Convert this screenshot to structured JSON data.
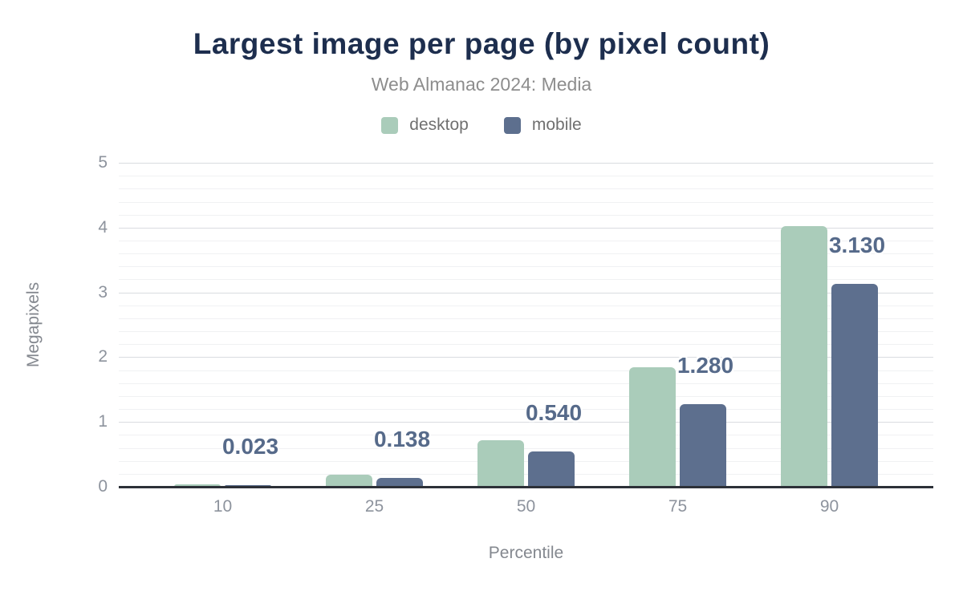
{
  "header": {
    "title": "Largest image per page (by pixel count)",
    "subtitle": "Web Almanac 2024: Media"
  },
  "legend": {
    "items": [
      {
        "label": "desktop",
        "color": "#aaccba"
      },
      {
        "label": "mobile",
        "color": "#5d6f8e"
      }
    ]
  },
  "chart_data": {
    "type": "bar",
    "title": "Largest image per page (by pixel count)",
    "subtitle": "Web Almanac 2024: Media",
    "categories": [
      "10",
      "25",
      "50",
      "75",
      "90"
    ],
    "series": [
      {
        "name": "desktop",
        "color": "#aaccba",
        "values": [
          0.04,
          0.19,
          0.72,
          1.85,
          4.02
        ]
      },
      {
        "name": "mobile",
        "color": "#5d6f8e",
        "values": [
          0.023,
          0.138,
          0.54,
          1.28,
          3.13
        ]
      }
    ],
    "annotations": {
      "series": "mobile",
      "labels": [
        "0.023",
        "0.138",
        "0.540",
        "1.280",
        "3.130"
      ]
    },
    "xlabel": "Percentile",
    "ylabel": "Megapixels",
    "y_axis": {
      "min": 0,
      "max": 5,
      "major_step": 1,
      "minor_step": 0.2,
      "tick_labels": [
        "0",
        "1",
        "2",
        "3",
        "4",
        "5"
      ]
    },
    "grid": true,
    "legend_position": "top"
  },
  "colors": {
    "title": "#1d2e4e",
    "subtitle": "#8d8d8d",
    "annotation_text": "#566a8a",
    "major_grid": "#d9dce0",
    "minor_grid": "#f0f1f3",
    "axis_line": "#2d3138",
    "tick_text": "#8d939d",
    "axis_title_text": "#84888f"
  }
}
